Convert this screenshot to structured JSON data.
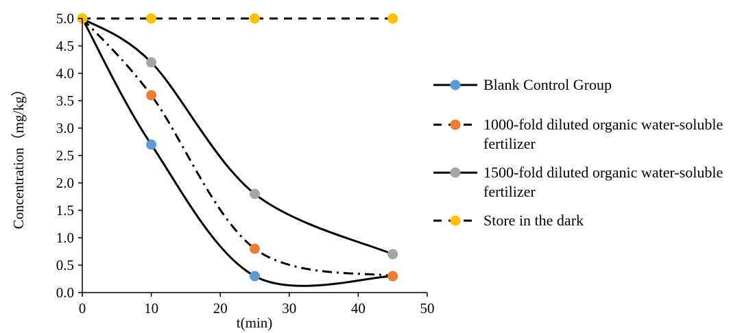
{
  "chart_data": {
    "type": "line",
    "xlabel": "t(min)",
    "ylabel": "Concentration（mg/kg）",
    "xlim": [
      0,
      50
    ],
    "ylim": [
      0,
      5
    ],
    "x_ticks": [
      "0",
      "10",
      "20",
      "30",
      "40",
      "50"
    ],
    "y_ticks": [
      "0.0",
      "0.5",
      "1.0",
      "1.5",
      "2.0",
      "2.5",
      "3.0",
      "3.5",
      "4.0",
      "4.5",
      "5.0"
    ],
    "grid": false,
    "legend_position": "right",
    "series": [
      {
        "name": "Blank Control Group",
        "x": [
          0,
          10,
          25,
          45
        ],
        "y": [
          5.0,
          2.7,
          0.3,
          0.3
        ],
        "marker_color": "#5B9BD5",
        "line_style": "solid",
        "line_color": "#000000"
      },
      {
        "name": "1000-fold diluted organic water-soluble fertilizer",
        "x": [
          0,
          10,
          25,
          45
        ],
        "y": [
          5.0,
          3.6,
          0.8,
          0.3
        ],
        "marker_color": "#ED7D31",
        "line_style": "dashdot",
        "line_color": "#000000"
      },
      {
        "name": "1500-fold diluted organic water-soluble fertilizer",
        "x": [
          0,
          10,
          25,
          45
        ],
        "y": [
          5.0,
          4.2,
          1.8,
          0.7
        ],
        "marker_color": "#A5A5A5",
        "line_style": "solid",
        "line_color": "#000000"
      },
      {
        "name": "Store in the dark",
        "x": [
          0,
          10,
          25,
          45
        ],
        "y": [
          5.0,
          5.0,
          5.0,
          5.0
        ],
        "marker_color": "#FFC000",
        "line_style": "dashed",
        "line_color": "#000000"
      }
    ]
  }
}
